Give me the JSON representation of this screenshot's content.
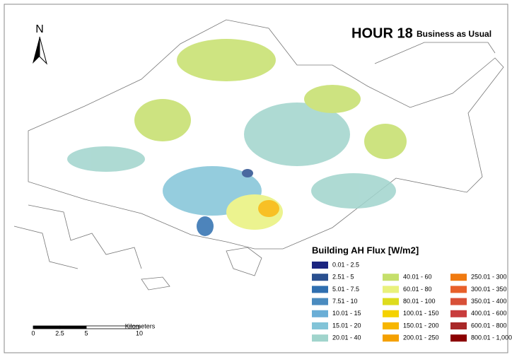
{
  "title": "HOUR 18",
  "subtitle": "Business as Usual",
  "north": "N",
  "legend": {
    "title": "Building AH Flux [W/m2]",
    "columns": [
      [
        {
          "label": "0.01 - 2.5",
          "color": "#1b2580"
        },
        {
          "label": "2.51 - 5",
          "color": "#2a4f8f"
        },
        {
          "label": "5.01 - 7.5",
          "color": "#2f6fb0"
        },
        {
          "label": "7.51 - 10",
          "color": "#4a8bbf"
        },
        {
          "label": "10.01 - 15",
          "color": "#6aaed6"
        },
        {
          "label": "15.01 - 20",
          "color": "#82c4d8"
        },
        {
          "label": "20.01 - 40",
          "color": "#a0d4cc"
        }
      ],
      [
        {
          "label": "40.01 - 60",
          "color": "#c5df6b"
        },
        {
          "label": "60.01 - 80",
          "color": "#e9f17c"
        },
        {
          "label": "80.01 - 100",
          "color": "#dedc1e"
        },
        {
          "label": "100.01 - 150",
          "color": "#f5d200"
        },
        {
          "label": "150.01 - 200",
          "color": "#f7b600"
        },
        {
          "label": "200.01 - 250",
          "color": "#f4a000"
        }
      ],
      [
        {
          "label": "250.01 - 300",
          "color": "#f07a10"
        },
        {
          "label": "300.01 - 350",
          "color": "#e8602a"
        },
        {
          "label": "350.01 - 400",
          "color": "#d85038"
        },
        {
          "label": "400.01 - 600",
          "color": "#c83c3c"
        },
        {
          "label": "600.01 - 800",
          "color": "#a82828"
        },
        {
          "label": "800.01 - 1,000",
          "color": "#8b0000"
        }
      ]
    ]
  },
  "scale_bar": {
    "ticks": [
      0,
      2.5,
      5,
      10
    ],
    "unit": "Kilometers"
  }
}
